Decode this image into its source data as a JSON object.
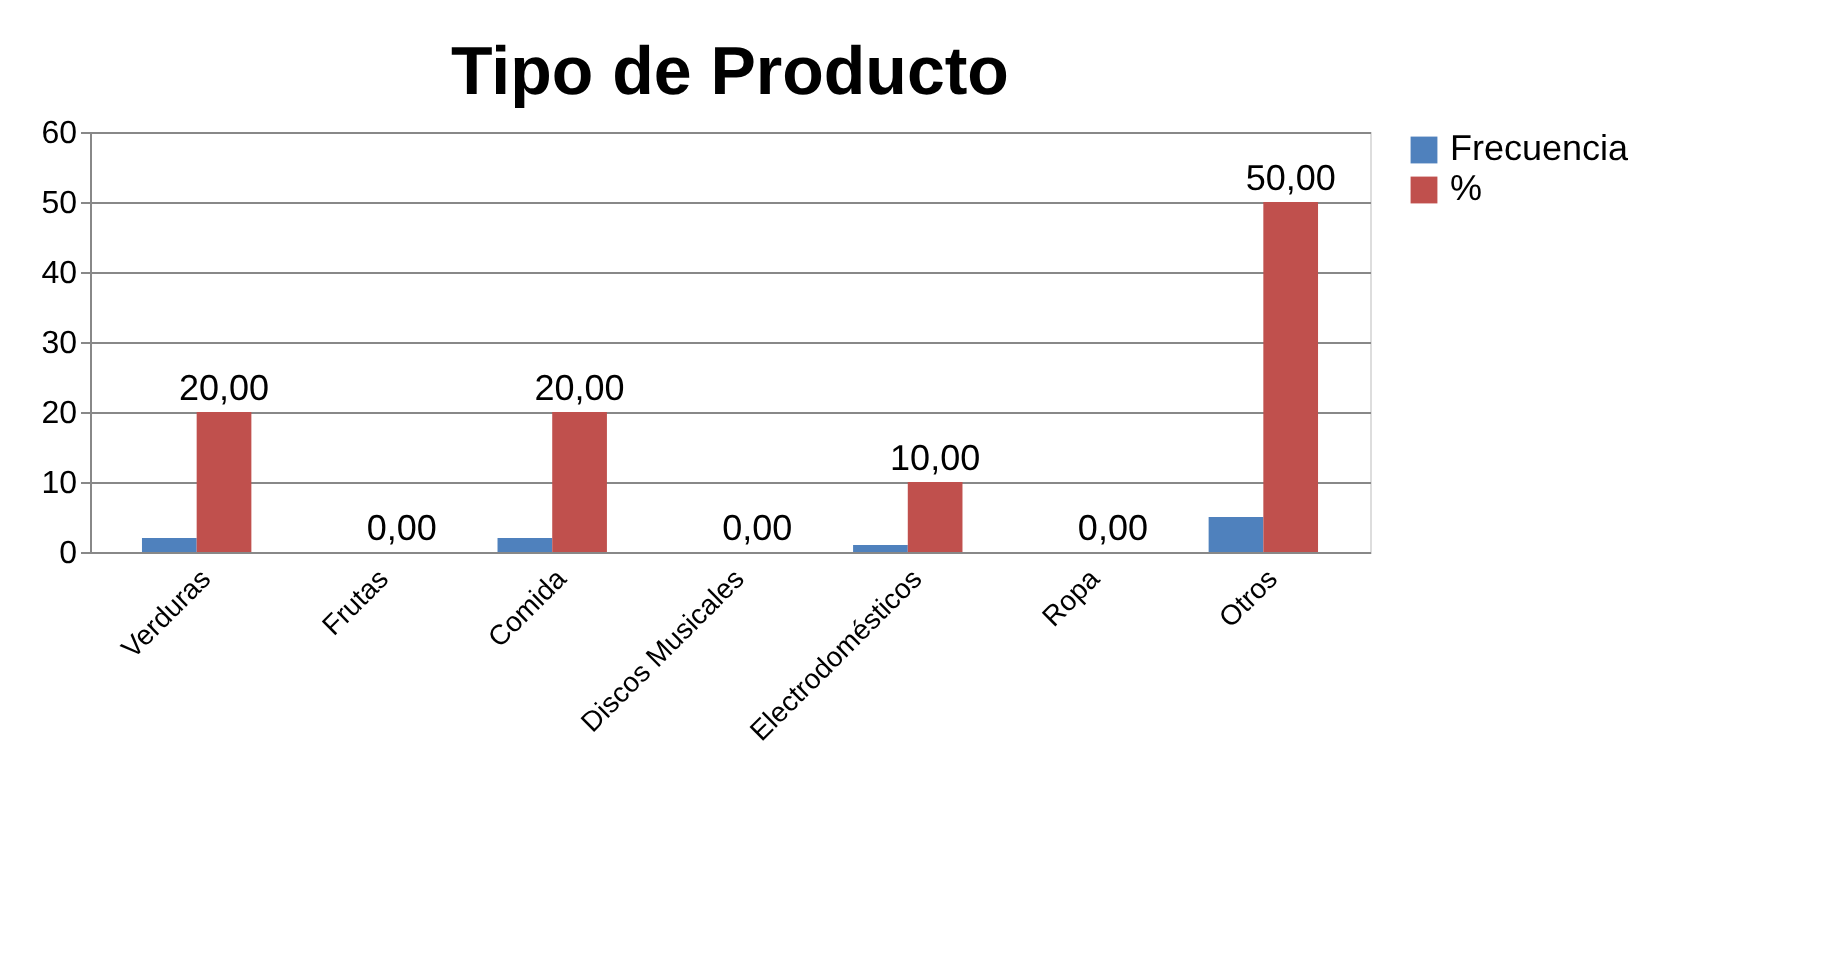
{
  "chart_data": {
    "type": "bar",
    "title": "Tipo de Producto",
    "categories": [
      "Verduras",
      "Frutas",
      "Comida",
      "Discos Musicales",
      "Electrodomésticos",
      "Ropa",
      "Otros"
    ],
    "series": [
      {
        "name": "Frecuencia",
        "color": "#4f81bd",
        "values": [
          2,
          0,
          2,
          0,
          1,
          0,
          5
        ]
      },
      {
        "name": "%",
        "color": "#c0504d",
        "values": [
          20,
          0,
          20,
          0,
          10,
          0,
          50
        ],
        "value_labels": [
          "20,00",
          "0,00",
          "20,00",
          "0,00",
          "10,00",
          "0,00",
          "50,00"
        ]
      }
    ],
    "ylim": [
      0,
      60
    ],
    "yticks": [
      0,
      10,
      20,
      30,
      40,
      50,
      60
    ],
    "grid": "y",
    "legend": "right"
  }
}
